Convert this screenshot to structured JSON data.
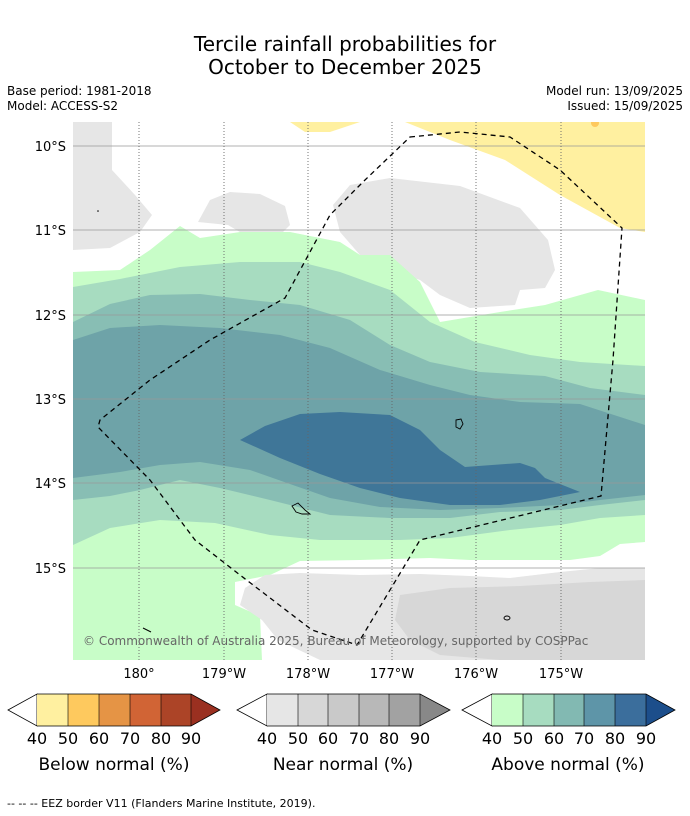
{
  "title_line1": "Tercile rainfall probabilities for",
  "title_line2": "October to December 2025",
  "meta_left": [
    "Base period: 1981-2018",
    "Model: ACCESS-S2"
  ],
  "meta_right": [
    "Model run: 13/09/2025",
    "Issued: 15/09/2025"
  ],
  "lat_labels": [
    "10°S",
    "11°S",
    "12°S",
    "13°S",
    "14°S",
    "15°S"
  ],
  "lon_labels": [
    "180°",
    "179°W",
    "178°W",
    "177°W",
    "176°W",
    "175°W"
  ],
  "copyright": "© Commonwealth of Australia 2025, Bureau of Meteorology, supported by COSPPac",
  "colorbars": [
    {
      "label": "Below normal (%)",
      "ticks": [
        "40",
        "50",
        "60",
        "70",
        "80",
        "90"
      ],
      "colors": [
        "#fff0a0",
        "#fec95e",
        "#e59445",
        "#d16435",
        "#ac4427",
        "#9a3020"
      ]
    },
    {
      "label": "Near normal (%)",
      "ticks": [
        "40",
        "50",
        "60",
        "70",
        "80",
        "90"
      ],
      "colors": [
        "#e6e6e6",
        "#d7d7d7",
        "#c9c9c9",
        "#b8b8b8",
        "#a2a2a2",
        "#888888"
      ]
    },
    {
      "label": "Above normal (%)",
      "ticks": [
        "40",
        "50",
        "60",
        "70",
        "80",
        "90"
      ],
      "colors": [
        "#c8fdc8",
        "#a7dcc0",
        "#82b9b2",
        "#5e95a8",
        "#3b6e9c",
        "#1c4e8b"
      ]
    }
  ],
  "footnote": "--  --  -- EEZ border V11 (Flanders Marine Institute, 2019)."
}
